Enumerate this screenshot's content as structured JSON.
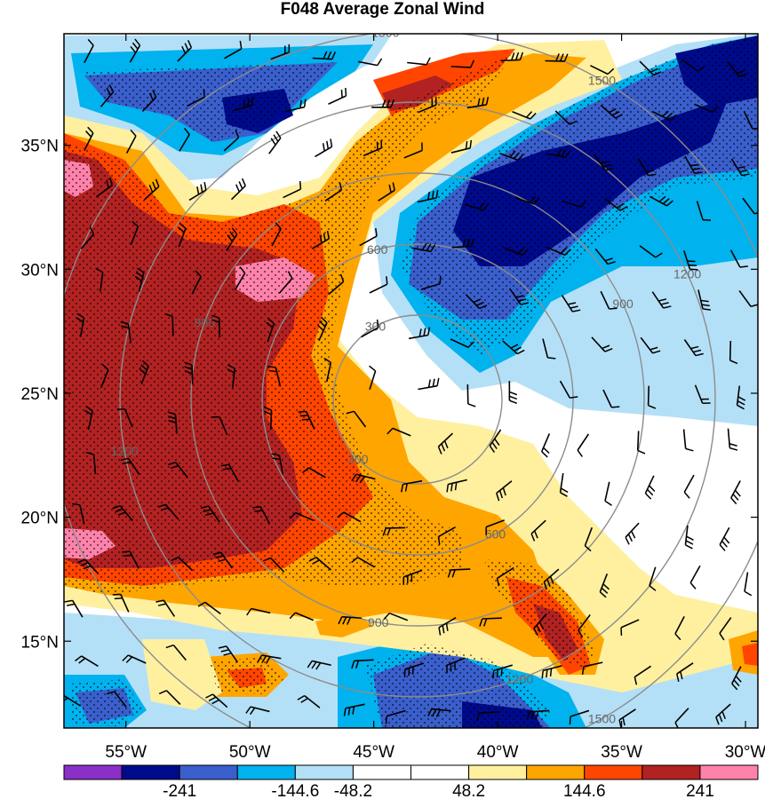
{
  "title": "F048 Average Zonal Wind",
  "map": {
    "lon_range": [
      -57.5,
      -29.5
    ],
    "lat_range": [
      11.5,
      39.5
    ],
    "lat_ticks": [
      {
        "value": 35,
        "label": "35°N"
      },
      {
        "value": 30,
        "label": "30°N"
      },
      {
        "value": 25,
        "label": "25°N"
      },
      {
        "value": 20,
        "label": "20°N"
      },
      {
        "value": 15,
        "label": "15°N"
      }
    ],
    "lon_ticks": [
      {
        "value": -55,
        "label": "55°W"
      },
      {
        "value": -50,
        "label": "50°W"
      },
      {
        "value": -45,
        "label": "45°W"
      },
      {
        "value": -40,
        "label": "40°W"
      },
      {
        "value": -35,
        "label": "35°W"
      },
      {
        "value": -30,
        "label": "30°W"
      }
    ],
    "range_rings": [
      {
        "label": "300"
      },
      {
        "label": "600"
      },
      {
        "label": "900"
      },
      {
        "label": "1200"
      },
      {
        "label": "1500"
      }
    ],
    "ring_label_samples": [
      "1500",
      "1200",
      "900",
      "600",
      "300",
      "900",
      "1200",
      "1500",
      "900",
      "1200",
      "1500",
      "900",
      "1200",
      "600"
    ]
  },
  "colorbar": {
    "colors": [
      "#8b2fc9",
      "#000a8c",
      "#3a5fcd",
      "#00b2ee",
      "#b4e0f7",
      "#ffffff",
      "#ffffff",
      "#fff0a0",
      "#ffa500",
      "#ff4500",
      "#b22222",
      "#ff82ab"
    ],
    "labels": [
      "-241",
      "-144.6",
      "-48.2",
      "48.2",
      "144.6",
      "241"
    ]
  },
  "field_colors": {
    "neg_strong": "#000a8c",
    "neg_mid": "#3a5fcd",
    "neg_light": "#00b2ee",
    "neg_pale": "#b4e0f7",
    "pos_pale": "#fff0a0",
    "pos_light": "#ffa500",
    "pos_mid": "#ff4500",
    "pos_strong": "#b22222",
    "pos_max": "#ff82ab"
  }
}
